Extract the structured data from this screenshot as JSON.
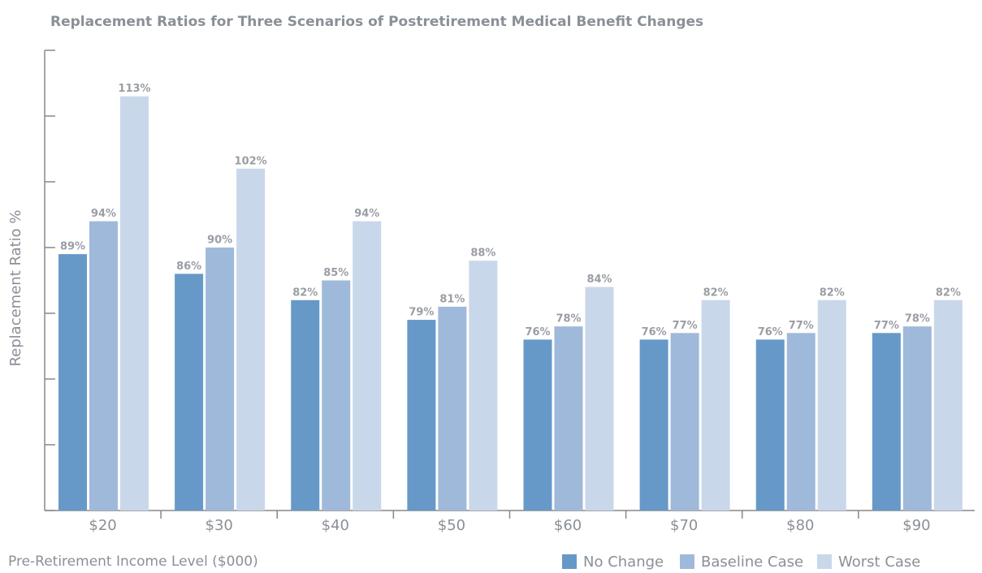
{
  "chart_data": {
    "type": "bar",
    "title": "Replacement Ratios for Three Scenarios of Postretirement Medical Benefit Changes",
    "y_label": "Replacement Ratio %",
    "x_label": "Pre-Retirement Income Level ($000)",
    "categories": [
      "$20",
      "$30",
      "$40",
      "$50",
      "$60",
      "$70",
      "$80",
      "$90"
    ],
    "series": [
      {
        "name": "No Change",
        "color": "#6699c8",
        "values": [
          89,
          86,
          82,
          79,
          76,
          76,
          76,
          77
        ],
        "value_labels": [
          "89%",
          "86%",
          "82%",
          "79%",
          "76%",
          "76%",
          "76%",
          "77%"
        ]
      },
      {
        "name": "Baseline Case",
        "color": "#9fb9da",
        "values": [
          94,
          90,
          85,
          81,
          78,
          77,
          77,
          78
        ],
        "value_labels": [
          "94%",
          "90%",
          "85%",
          "81%",
          "78%",
          "77%",
          "77%",
          "78%"
        ]
      },
      {
        "name": "Worst Case",
        "color": "#c9d7ea",
        "values": [
          113,
          102,
          94,
          88,
          84,
          82,
          82,
          82
        ],
        "value_labels": [
          "113%",
          "102%",
          "94%",
          "88%",
          "84%",
          "82%",
          "82%",
          "82%"
        ]
      }
    ],
    "ylim": [
      50,
      120
    ],
    "yticks": [
      50,
      60,
      70,
      80,
      90,
      100,
      110,
      120
    ],
    "grid": false
  }
}
